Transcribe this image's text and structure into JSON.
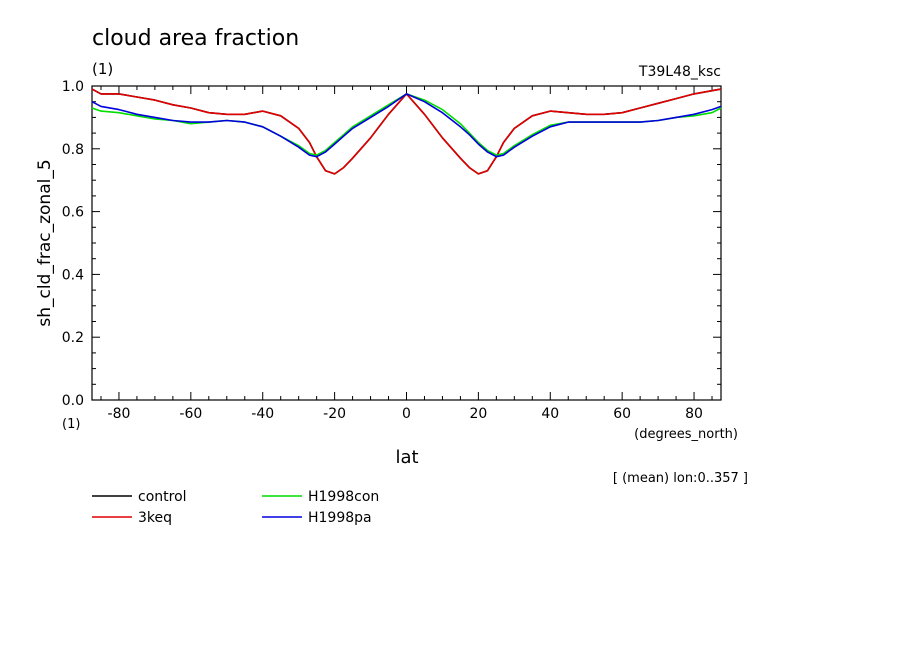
{
  "chart_data": {
    "type": "line",
    "title": "cloud area fraction",
    "title_units": "(1)",
    "experiment_label": "T39L48_ksc",
    "xlabel": "lat",
    "xunits": "(degrees_north)",
    "ylabel": "sh_cld_frac_zonal_5",
    "yunits": "(1)",
    "averaging_note": "[ (mean) lon:0..357 ]",
    "xlim": [
      -87.5,
      87.5
    ],
    "ylim": [
      0.0,
      1.0
    ],
    "xticks": [
      "-80",
      "-60",
      "-40",
      "-20",
      "0",
      "20",
      "40",
      "60",
      "80"
    ],
    "xtick_values": [
      -80,
      -60,
      -40,
      -20,
      0,
      20,
      40,
      60,
      80
    ],
    "yticks": [
      "0.0",
      "0.2",
      "0.4",
      "0.6",
      "0.8",
      "1.0"
    ],
    "ytick_values": [
      0.0,
      0.2,
      0.4,
      0.6,
      0.8,
      1.0
    ],
    "grid": false,
    "legend_position": "bottom-left",
    "x": [
      -87.5,
      -85,
      -80,
      -75,
      -70,
      -65,
      -60,
      -55,
      -50,
      -45,
      -40,
      -35,
      -30,
      -27,
      -25,
      -22.5,
      -20,
      -17.5,
      -15,
      -10,
      -5,
      0,
      5,
      10,
      15,
      17.5,
      20,
      22.5,
      25,
      27,
      30,
      35,
      40,
      45,
      50,
      55,
      60,
      65,
      70,
      75,
      80,
      85,
      87.5
    ],
    "series": [
      {
        "name": "control",
        "color": "#000000",
        "values": [
          0.99,
          0.975,
          0.975,
          0.965,
          0.955,
          0.94,
          0.93,
          0.915,
          0.91,
          0.91,
          0.92,
          0.905,
          0.865,
          0.82,
          0.775,
          0.73,
          0.72,
          0.74,
          0.77,
          0.835,
          0.91,
          0.975,
          0.91,
          0.835,
          0.77,
          0.74,
          0.72,
          0.73,
          0.775,
          0.82,
          0.865,
          0.905,
          0.92,
          0.915,
          0.91,
          0.91,
          0.915,
          0.93,
          0.945,
          0.96,
          0.975,
          0.985,
          0.99
        ]
      },
      {
        "name": "3keq",
        "color": "#e00000",
        "values": [
          0.99,
          0.975,
          0.975,
          0.965,
          0.955,
          0.94,
          0.93,
          0.915,
          0.91,
          0.91,
          0.92,
          0.905,
          0.865,
          0.82,
          0.775,
          0.73,
          0.72,
          0.74,
          0.77,
          0.835,
          0.91,
          0.975,
          0.91,
          0.835,
          0.77,
          0.74,
          0.72,
          0.73,
          0.775,
          0.82,
          0.865,
          0.905,
          0.92,
          0.915,
          0.91,
          0.91,
          0.915,
          0.93,
          0.945,
          0.96,
          0.975,
          0.985,
          0.99
        ]
      },
      {
        "name": "H1998con",
        "color": "#00dd00",
        "values": [
          0.93,
          0.92,
          0.915,
          0.905,
          0.895,
          0.89,
          0.88,
          0.885,
          0.89,
          0.885,
          0.87,
          0.84,
          0.81,
          0.785,
          0.78,
          0.795,
          0.82,
          0.845,
          0.87,
          0.905,
          0.94,
          0.975,
          0.955,
          0.925,
          0.88,
          0.85,
          0.82,
          0.795,
          0.78,
          0.785,
          0.81,
          0.845,
          0.875,
          0.885,
          0.885,
          0.885,
          0.885,
          0.885,
          0.89,
          0.9,
          0.905,
          0.915,
          0.93
        ]
      },
      {
        "name": "H1998pa",
        "color": "#0000dd",
        "values": [
          0.95,
          0.935,
          0.925,
          0.91,
          0.9,
          0.89,
          0.885,
          0.885,
          0.89,
          0.885,
          0.87,
          0.84,
          0.805,
          0.78,
          0.775,
          0.79,
          0.815,
          0.84,
          0.865,
          0.9,
          0.935,
          0.975,
          0.95,
          0.915,
          0.87,
          0.845,
          0.815,
          0.79,
          0.775,
          0.78,
          0.805,
          0.84,
          0.87,
          0.885,
          0.885,
          0.885,
          0.885,
          0.885,
          0.89,
          0.9,
          0.91,
          0.925,
          0.935
        ]
      }
    ]
  }
}
